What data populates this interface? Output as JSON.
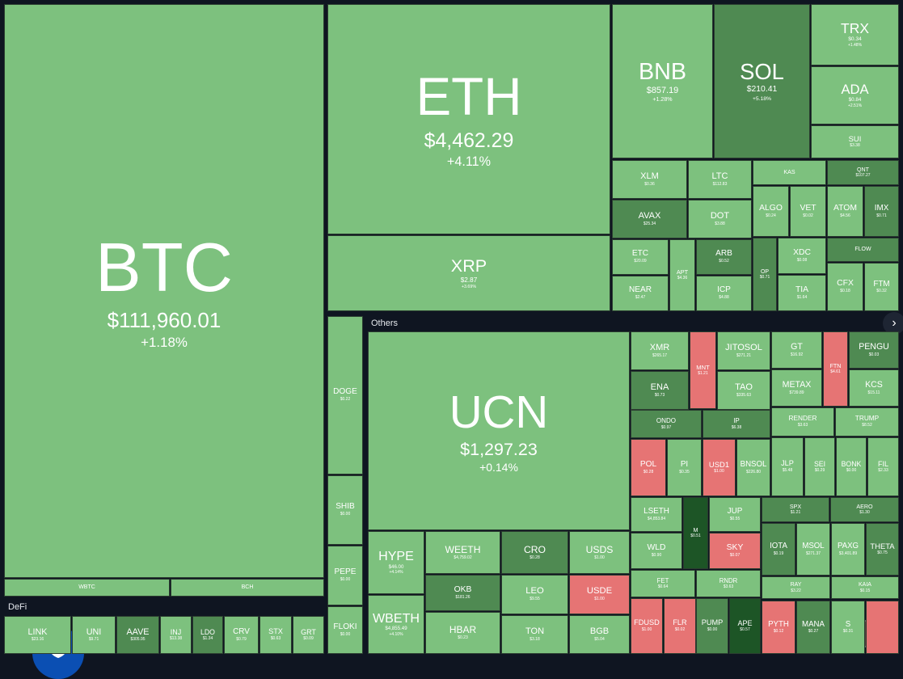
{
  "sections": {
    "others": "Others",
    "defi": "DeFi"
  },
  "tiles": [
    {
      "label": "BTC",
      "price": "$111,960.01",
      "change": "+1.18%"
    },
    {
      "label": "WBTC"
    },
    {
      "label": "BCH"
    },
    {
      "label": "ETH",
      "price": "$4,462.29",
      "change": "+4.11%"
    },
    {
      "label": "XRP",
      "price": "$2.87",
      "change": "+3.69%"
    },
    {
      "label": "BNB",
      "price": "$857.19",
      "change": "+1.28%"
    },
    {
      "label": "SOL",
      "price": "$210.41",
      "change": "+5.18%"
    },
    {
      "label": "TRX",
      "price": "$0.34",
      "change": "+1.48%"
    },
    {
      "label": "ADA",
      "price": "$0.84",
      "change": "+2.51%"
    },
    {
      "label": "SUI",
      "price": "$3.38"
    },
    {
      "label": "XLM",
      "price": "$0.36"
    },
    {
      "label": "LTC",
      "price": "$112.83"
    },
    {
      "label": "AVAX",
      "price": "$25.34"
    },
    {
      "label": "DOT",
      "price": "$3.88"
    },
    {
      "label": "KAS"
    },
    {
      "label": "QNT",
      "price": "$107.27"
    },
    {
      "label": "ALGO",
      "price": "$0.24"
    },
    {
      "label": "VET",
      "price": "$0.02"
    },
    {
      "label": "ATOM",
      "price": "$4.56"
    },
    {
      "label": "IMX",
      "price": "$0.71"
    },
    {
      "label": "ETC",
      "price": "$20.09"
    },
    {
      "label": "NEAR",
      "price": "$2.47"
    },
    {
      "label": "APT",
      "price": "$4.36"
    },
    {
      "label": "ARB",
      "price": "$0.52"
    },
    {
      "label": "ICP",
      "price": "$4.88"
    },
    {
      "label": "OP",
      "price": "$0.71"
    },
    {
      "label": "XDC",
      "price": "$0.08"
    },
    {
      "label": "TIA",
      "price": "$1.64"
    },
    {
      "label": "FLOW"
    },
    {
      "label": "CFX",
      "price": "$0.18"
    },
    {
      "label": "FTM",
      "price": "$0.32"
    },
    {
      "label": "DOGE",
      "price": "$0.22"
    },
    {
      "label": "SHIB",
      "price": "$0.00"
    },
    {
      "label": "PEPE",
      "price": "$0.00"
    },
    {
      "label": "FLOKI",
      "price": "$0.00"
    },
    {
      "label": "LINK",
      "price": "$23.16"
    },
    {
      "label": "UNI",
      "price": "$9.71"
    },
    {
      "label": "AAVE",
      "price": "$305.95"
    },
    {
      "label": "INJ",
      "price": "$13.38"
    },
    {
      "label": "LDO",
      "price": "$1.34"
    },
    {
      "label": "CRV",
      "price": "$0.79"
    },
    {
      "label": "STX",
      "price": "$0.63"
    },
    {
      "label": "GRT",
      "price": "$0.09"
    },
    {
      "label": "UCN",
      "price": "$1,297.23",
      "change": "+0.14%"
    },
    {
      "label": "HYPE",
      "price": "$46.00",
      "change": "+4.14%"
    },
    {
      "label": "WBETH",
      "price": "$4,855.49",
      "change": "+4.10%"
    },
    {
      "label": "WEETH",
      "price": "$4,759.02"
    },
    {
      "label": "OKB",
      "price": "$181.26"
    },
    {
      "label": "HBAR",
      "price": "$0.23"
    },
    {
      "label": "CRO",
      "price": "$0.28"
    },
    {
      "label": "LEO",
      "price": "$9.55"
    },
    {
      "label": "TON",
      "price": "$3.18"
    },
    {
      "label": "USDS",
      "price": "$1.00"
    },
    {
      "label": "USDE",
      "price": "$1.00"
    },
    {
      "label": "BGB",
      "price": "$5.04"
    },
    {
      "label": "XMR",
      "price": "$265.17"
    },
    {
      "label": "ENA",
      "price": "$0.73"
    },
    {
      "label": "MNT",
      "price": "$1.21"
    },
    {
      "label": "JITOSOL",
      "price": "$271.21"
    },
    {
      "label": "TAO",
      "price": "$335.63"
    },
    {
      "label": "ONDO",
      "price": "$0.97"
    },
    {
      "label": "IP",
      "price": "$6.38"
    },
    {
      "label": "GT",
      "price": "$16.92"
    },
    {
      "label": "METAX",
      "price": "$739.89"
    },
    {
      "label": "FTN",
      "price": "$4.61"
    },
    {
      "label": "PENGU",
      "price": "$0.03"
    },
    {
      "label": "KCS",
      "price": "$15.11"
    },
    {
      "label": "RENDER",
      "price": "$3.63"
    },
    {
      "label": "TRUMP",
      "price": "$8.52"
    },
    {
      "label": "POL",
      "price": "$0.28"
    },
    {
      "label": "PI",
      "price": "$0.35"
    },
    {
      "label": "USD1",
      "price": "$1.00"
    },
    {
      "label": "BNSOL",
      "price": "$226.80"
    },
    {
      "label": "JLP",
      "price": "$5.48"
    },
    {
      "label": "SEI",
      "price": "$0.29"
    },
    {
      "label": "BONK",
      "price": "$0.00"
    },
    {
      "label": "FIL",
      "price": "$2.33"
    },
    {
      "label": "LSETH",
      "price": "$4,853.84"
    },
    {
      "label": "WLD",
      "price": "$0.90"
    },
    {
      "label": "M",
      "price": "$0.51"
    },
    {
      "label": "JUP",
      "price": "$0.55"
    },
    {
      "label": "SKY",
      "price": "$0.07"
    },
    {
      "label": "SPX",
      "price": "$1.21"
    },
    {
      "label": "AERO",
      "price": "$1.30"
    },
    {
      "label": "IOTA",
      "price": "$0.19"
    },
    {
      "label": "MSOL",
      "price": "$271.37"
    },
    {
      "label": "PAXG",
      "price": "$3,401.89"
    },
    {
      "label": "THETA",
      "price": "$0.75"
    },
    {
      "label": "FET",
      "price": "$0.64"
    },
    {
      "label": "RNDR",
      "price": "$3.63"
    },
    {
      "label": "FDUSD",
      "price": "$1.00"
    },
    {
      "label": "FLR",
      "price": "$0.02"
    },
    {
      "label": "PUMP",
      "price": "$0.00"
    },
    {
      "label": "APE",
      "price": "$0.57"
    },
    {
      "label": "RAY",
      "price": "$3.22"
    },
    {
      "label": "KAIA",
      "price": "$0.15"
    },
    {
      "label": "PYTH",
      "price": "$0.12"
    },
    {
      "label": "MANA",
      "price": "$0.27"
    },
    {
      "label": "S",
      "price": "$0.31"
    }
  ]
}
